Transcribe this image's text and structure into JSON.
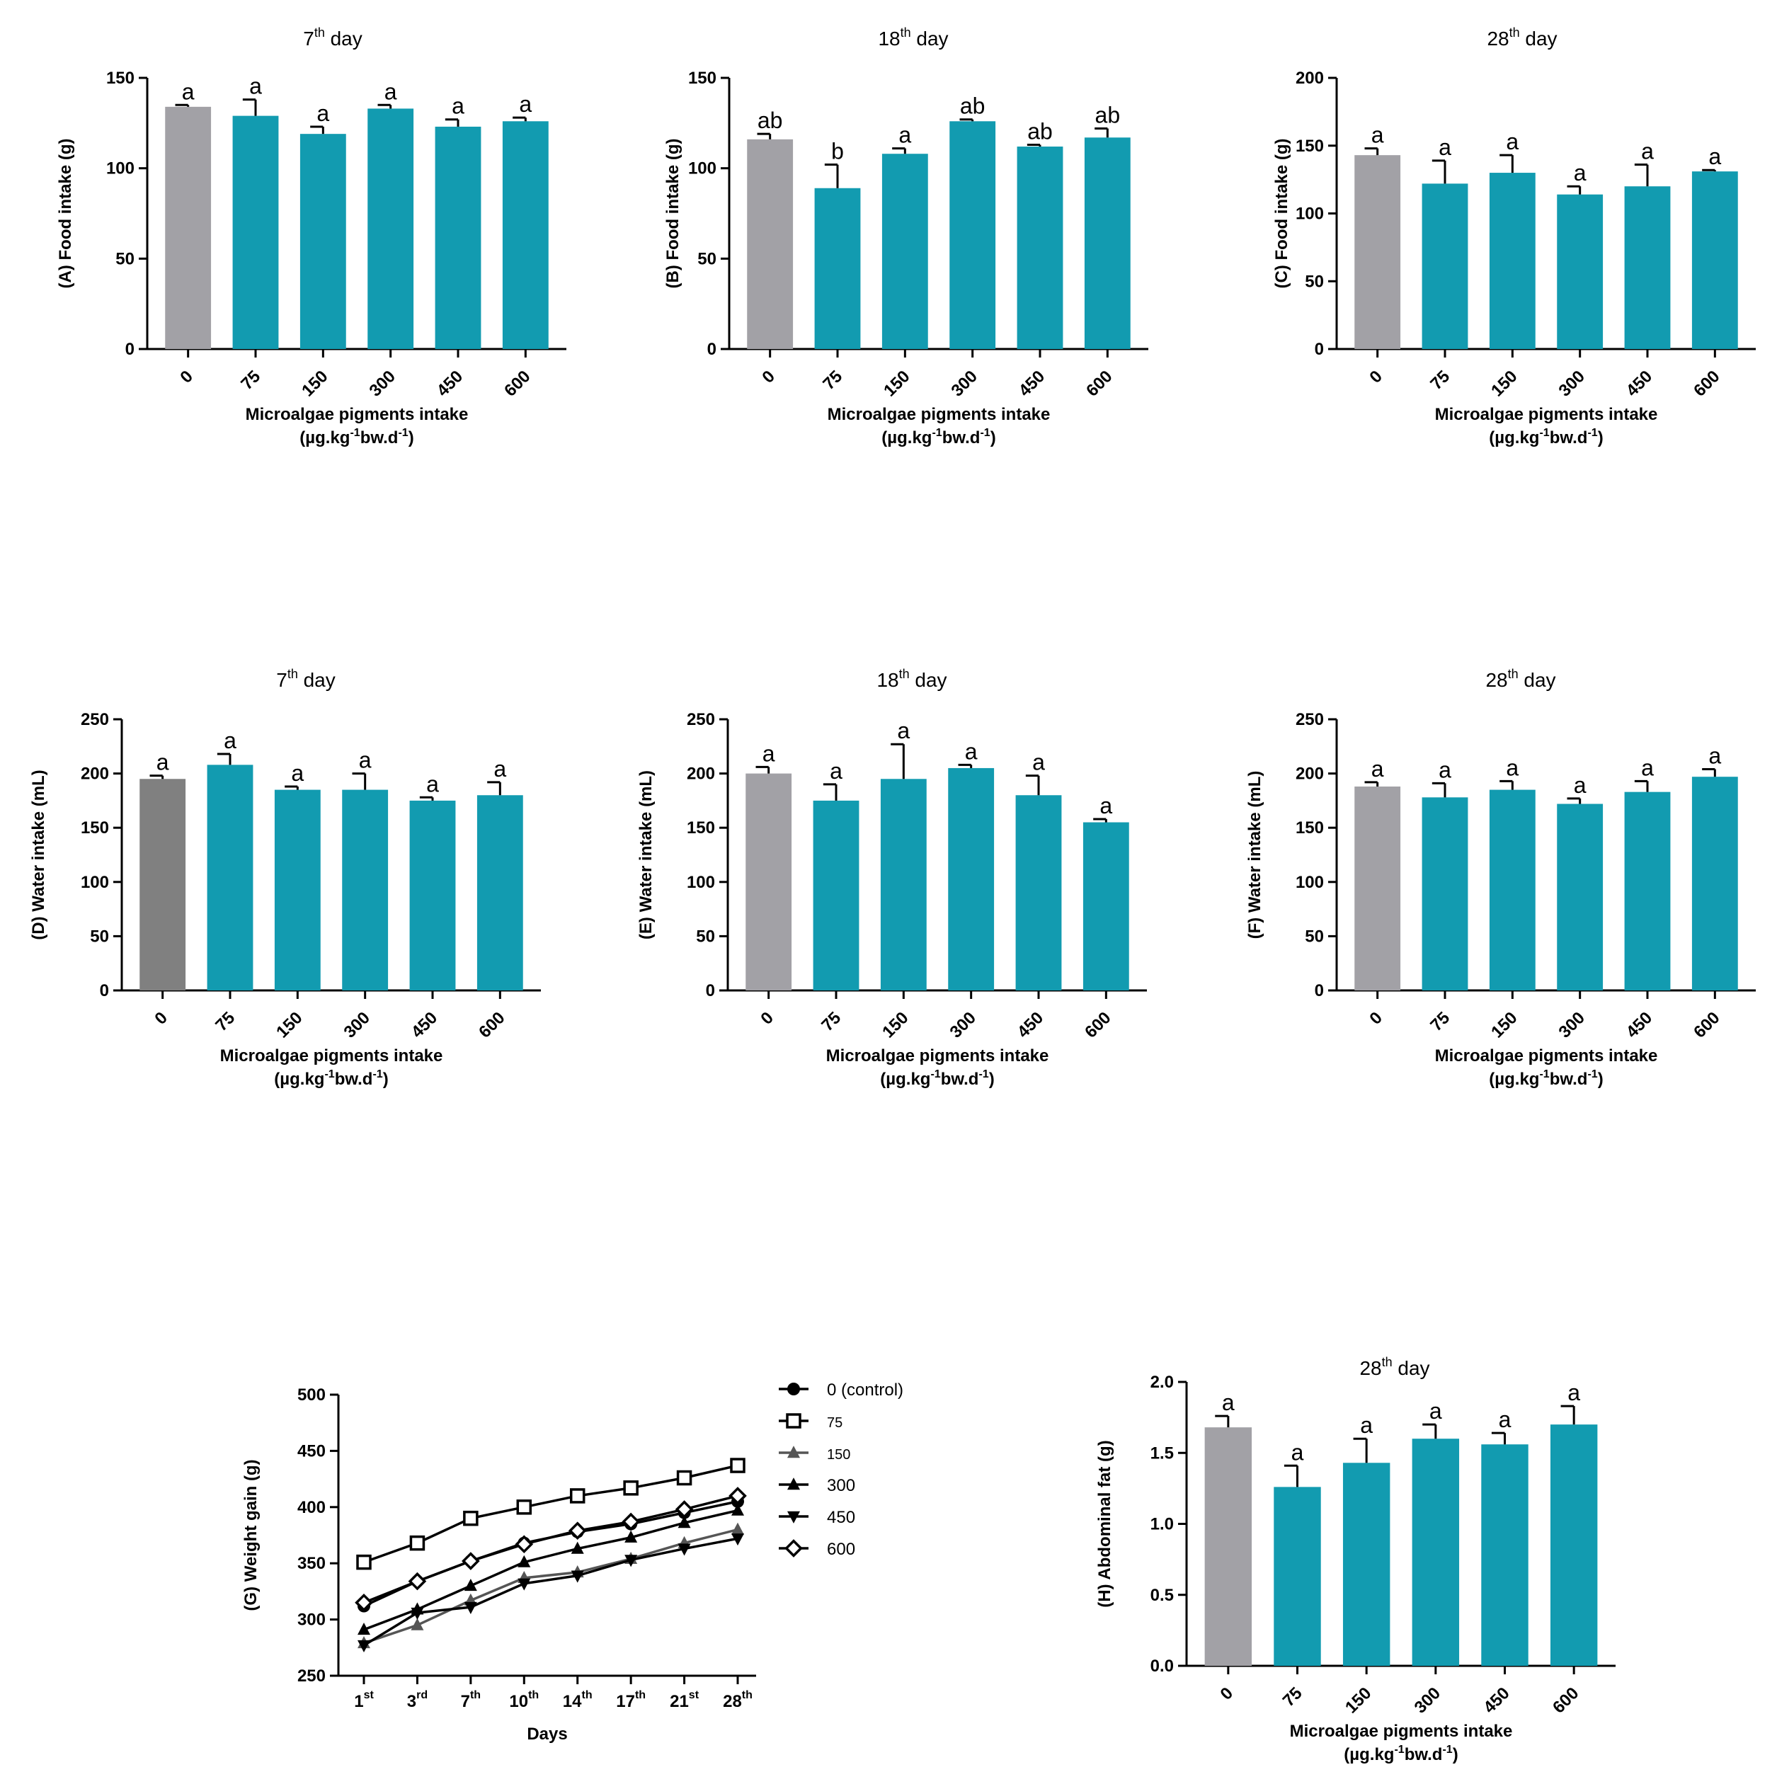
{
  "colors": {
    "control_bar": "#a2a1a6",
    "control_bar_dark": "#808080",
    "treatment_bar": "#129bb0",
    "axis": "#000000",
    "line": "#000000",
    "line_gray": "#555555"
  },
  "chart_data": [
    {
      "id": "A",
      "type": "bar",
      "title": "7",
      "title_sup": "th",
      "title_rest": " day",
      "ylabel": "(A) Food intake (g)",
      "xlabel": "Microalgae pigments intake",
      "xlabel2_a": "(µg.kg",
      "xlabel2_sup": "-1",
      "xlabel2_b": "bw.d",
      "xlabel2_sup2": "-1",
      "xlabel2_c": ")",
      "categories": [
        "0",
        "75",
        "150",
        "300",
        "450",
        "600"
      ],
      "values": [
        134,
        129,
        119,
        133,
        123,
        126
      ],
      "errors": [
        1,
        9,
        4,
        2,
        4,
        2
      ],
      "letters": [
        "a",
        "a",
        "a",
        "a",
        "a",
        "a"
      ],
      "ylim": [
        0,
        150
      ],
      "yticks": [
        0,
        50,
        100,
        150
      ],
      "control_color": "control_bar"
    },
    {
      "id": "B",
      "type": "bar",
      "title": "18",
      "title_sup": "th",
      "title_rest": " day",
      "ylabel": "(B) Food intake (g)",
      "xlabel": "Microalgae pigments intake",
      "xlabel2_a": "(µg.kg",
      "xlabel2_sup": "-1",
      "xlabel2_b": "bw.d",
      "xlabel2_sup2": "-1",
      "xlabel2_c": ")",
      "categories": [
        "0",
        "75",
        "150",
        "300",
        "450",
        "600"
      ],
      "values": [
        116,
        89,
        108,
        126,
        112,
        117
      ],
      "errors": [
        3,
        13,
        3,
        1,
        1,
        5
      ],
      "letters": [
        "ab",
        "b",
        "a",
        "ab",
        "ab",
        "ab"
      ],
      "ylim": [
        0,
        150
      ],
      "yticks": [
        0,
        50,
        100,
        150
      ],
      "control_color": "control_bar"
    },
    {
      "id": "C",
      "type": "bar",
      "title": "28",
      "title_sup": "th",
      "title_rest": " day",
      "ylabel": "(C) Food intake (g)",
      "xlabel": "Microalgae pigments intake",
      "xlabel2_a": "(µg.kg",
      "xlabel2_sup": "-1",
      "xlabel2_b": "bw.d",
      "xlabel2_sup2": "-1",
      "xlabel2_c": ")",
      "categories": [
        "0",
        "75",
        "150",
        "300",
        "450",
        "600"
      ],
      "values": [
        143,
        122,
        130,
        114,
        120,
        131
      ],
      "errors": [
        5,
        17,
        13,
        6,
        16,
        1
      ],
      "letters": [
        "a",
        "a",
        "a",
        "a",
        "a",
        "a"
      ],
      "ylim": [
        0,
        200
      ],
      "yticks": [
        0,
        50,
        100,
        150,
        200
      ],
      "control_color": "control_bar"
    },
    {
      "id": "D",
      "type": "bar",
      "title": "7",
      "title_sup": "th",
      "title_rest": " day",
      "ylabel": "(D) Water intake (mL)",
      "xlabel": "Microalgae pigments intake",
      "xlabel2_a": "(µg.kg",
      "xlabel2_sup": "-1",
      "xlabel2_b": "bw.d",
      "xlabel2_sup2": "-1",
      "xlabel2_c": ")",
      "categories": [
        "0",
        "75",
        "150",
        "300",
        "450",
        "600"
      ],
      "values": [
        195,
        208,
        185,
        185,
        175,
        180
      ],
      "errors": [
        3,
        10,
        3,
        15,
        3,
        12
      ],
      "letters": [
        "a",
        "a",
        "a",
        "a",
        "a",
        "a"
      ],
      "ylim": [
        0,
        250
      ],
      "yticks": [
        0,
        50,
        100,
        150,
        200,
        250
      ],
      "control_color": "control_bar_dark"
    },
    {
      "id": "E",
      "type": "bar",
      "title": "18",
      "title_sup": "th",
      "title_rest": " day",
      "ylabel": "(E) Water intake (mL)",
      "xlabel": "Microalgae pigments intake",
      "xlabel2_a": "(µg.kg",
      "xlabel2_sup": "-1",
      "xlabel2_b": "bw.d",
      "xlabel2_sup2": "-1",
      "xlabel2_c": ")",
      "categories": [
        "0",
        "75",
        "150",
        "300",
        "450",
        "600"
      ],
      "values": [
        200,
        175,
        195,
        205,
        180,
        155
      ],
      "errors": [
        6,
        15,
        32,
        3,
        18,
        3
      ],
      "letters": [
        "a",
        "a",
        "a",
        "a",
        "a",
        "a"
      ],
      "ylim": [
        0,
        250
      ],
      "yticks": [
        0,
        50,
        100,
        150,
        200,
        250
      ],
      "control_color": "control_bar"
    },
    {
      "id": "F",
      "type": "bar",
      "title": "28",
      "title_sup": "th",
      "title_rest": " day",
      "ylabel": "(F) Water intake (mL)",
      "xlabel": "Microalgae pigments intake",
      "xlabel2_a": "(µg.kg",
      "xlabel2_sup": "-1",
      "xlabel2_b": "bw.d",
      "xlabel2_sup2": "-1",
      "xlabel2_c": ")",
      "categories": [
        "0",
        "75",
        "150",
        "300",
        "450",
        "600"
      ],
      "values": [
        188,
        178,
        185,
        172,
        183,
        197
      ],
      "errors": [
        4,
        13,
        8,
        5,
        10,
        7
      ],
      "letters": [
        "a",
        "a",
        "a",
        "a",
        "a",
        "a"
      ],
      "ylim": [
        0,
        250
      ],
      "yticks": [
        0,
        50,
        100,
        150,
        200,
        250
      ],
      "control_color": "control_bar"
    },
    {
      "id": "G",
      "type": "line",
      "ylabel": "(G) Weight gain (g)",
      "xlabel": "Days",
      "x_ticks": [
        {
          "num": "1",
          "sup": "st"
        },
        {
          "num": "3",
          "sup": "rd"
        },
        {
          "num": "7",
          "sup": "th"
        },
        {
          "num": "10",
          "sup": "th"
        },
        {
          "num": "14",
          "sup": "th"
        },
        {
          "num": "17",
          "sup": "th"
        },
        {
          "num": "21",
          "sup": "st"
        },
        {
          "num": "28",
          "sup": "th"
        }
      ],
      "ylim": [
        250,
        500
      ],
      "yticks": [
        250,
        300,
        350,
        400,
        450,
        500
      ],
      "series": [
        {
          "name": "0 (control)",
          "marker": "circle",
          "color": "line",
          "small": false,
          "values": [
            312,
            334,
            352,
            368,
            378,
            385,
            395,
            405
          ]
        },
        {
          "name": "75",
          "marker": "square",
          "color": "line",
          "small": true,
          "values": [
            351,
            368,
            390,
            400,
            410,
            417,
            426,
            437
          ]
        },
        {
          "name": "150",
          "marker": "triangle",
          "color": "line_gray",
          "small": true,
          "values": [
            279,
            295,
            317,
            337,
            342,
            354,
            368,
            380
          ]
        },
        {
          "name": "300",
          "marker": "triangle",
          "color": "line",
          "small": false,
          "values": [
            291,
            309,
            330,
            351,
            363,
            373,
            386,
            397
          ]
        },
        {
          "name": "450",
          "marker": "triangle-down",
          "color": "line",
          "small": false,
          "values": [
            277,
            306,
            311,
            332,
            339,
            353,
            363,
            372
          ]
        },
        {
          "name": "600",
          "marker": "diamond",
          "color": "line",
          "small": false,
          "values": [
            315,
            334,
            352,
            367,
            379,
            387,
            398,
            410
          ]
        }
      ]
    },
    {
      "id": "H",
      "type": "bar",
      "title": "28",
      "title_sup": "th",
      "title_rest": " day",
      "ylabel": "(H) Abdominal fat (g)",
      "xlabel": "Microalgae pigments intake",
      "xlabel2_a": "(µg.kg",
      "xlabel2_sup": "-1",
      "xlabel2_b": "bw.d",
      "xlabel2_sup2": "-1",
      "xlabel2_c": ")",
      "categories": [
        "0",
        "75",
        "150",
        "300",
        "450",
        "600"
      ],
      "values": [
        1.68,
        1.26,
        1.43,
        1.6,
        1.56,
        1.7
      ],
      "errors": [
        0.08,
        0.15,
        0.17,
        0.1,
        0.08,
        0.13
      ],
      "letters": [
        "a",
        "a",
        "a",
        "a",
        "a",
        "a"
      ],
      "ylim": [
        0,
        2.0
      ],
      "yticks": [
        0.0,
        0.5,
        1.0,
        1.5,
        2.0
      ],
      "ytick_decimals": 1,
      "control_color": "control_bar"
    }
  ]
}
